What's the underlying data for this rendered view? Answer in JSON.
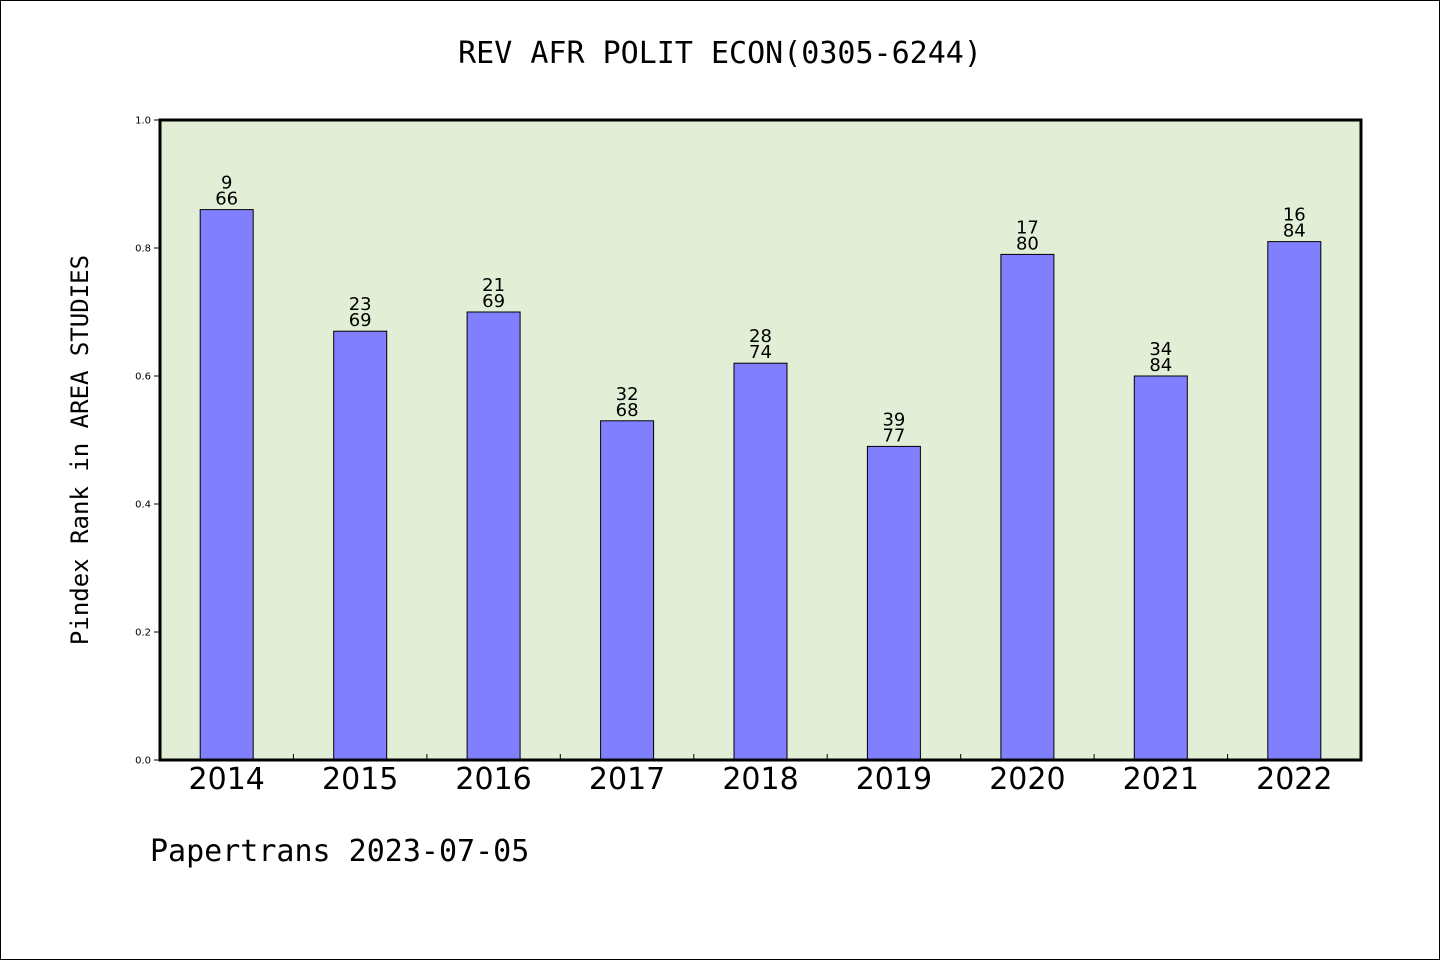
{
  "chart_data": {
    "type": "bar",
    "title": "REV AFR POLIT ECON(0305-6244)",
    "ylabel": "Pindex Rank in AREA STUDIES",
    "xlabel": "",
    "ylim": [
      0.0,
      1.0
    ],
    "yticks": [
      "0.0",
      "0.2",
      "0.4",
      "0.6",
      "0.8",
      "1.0"
    ],
    "categories": [
      "2014",
      "2015",
      "2016",
      "2017",
      "2018",
      "2019",
      "2020",
      "2021",
      "2022"
    ],
    "values": [
      0.86,
      0.67,
      0.7,
      0.53,
      0.62,
      0.49,
      0.79,
      0.6,
      0.81
    ],
    "rank": [
      "9",
      "23",
      "21",
      "32",
      "28",
      "39",
      "17",
      "34",
      "16"
    ],
    "total": [
      "66",
      "69",
      "69",
      "68",
      "74",
      "77",
      "80",
      "84",
      "84"
    ],
    "grid": false,
    "colors": {
      "bar": "#8080ff",
      "plot_background": "#e2efd6"
    }
  },
  "footer": {
    "text": "Papertrans 2023-07-05"
  }
}
